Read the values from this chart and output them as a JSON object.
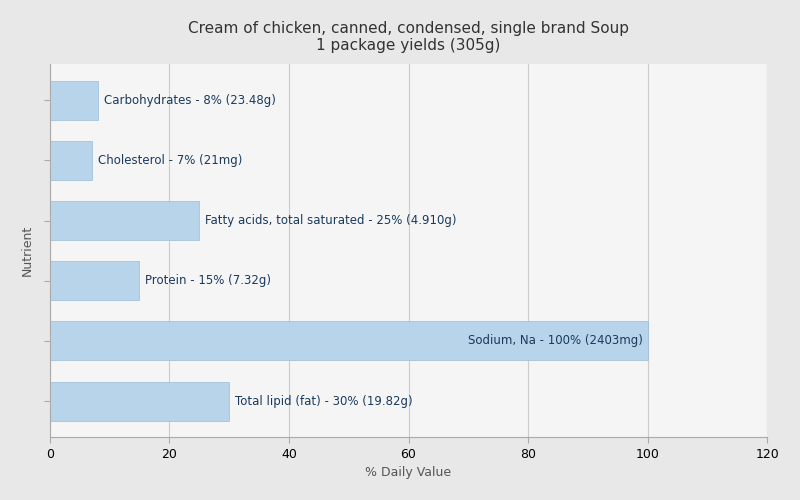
{
  "title_line1": "Cream of chicken, canned, condensed, single brand Soup",
  "title_line2": "1 package yields (305g)",
  "nutrients": [
    {
      "name": "Carbohydrates - 8% (23.48g)",
      "value": 8
    },
    {
      "name": "Cholesterol - 7% (21mg)",
      "value": 7
    },
    {
      "name": "Fatty acids, total saturated - 25% (4.910g)",
      "value": 25
    },
    {
      "name": "Protein - 15% (7.32g)",
      "value": 15
    },
    {
      "name": "Sodium, Na - 100% (2403mg)",
      "value": 100
    },
    {
      "name": "Total lipid (fat) - 30% (19.82g)",
      "value": 30
    }
  ],
  "bar_color": "#b8d4eb",
  "bar_edge_color": "#9bbdd8",
  "xlabel": "% Daily Value",
  "ylabel": "Nutrient",
  "xlim": [
    0,
    120
  ],
  "xticks": [
    0,
    20,
    40,
    60,
    80,
    100,
    120
  ],
  "background_color": "#e8e8e8",
  "plot_bg_color": "#f5f5f5",
  "title_fontsize": 11,
  "label_fontsize": 8.5,
  "axis_label_fontsize": 9,
  "tick_fontsize": 9,
  "label_color": "#1a3a5c",
  "grid_color": "#cccccc"
}
